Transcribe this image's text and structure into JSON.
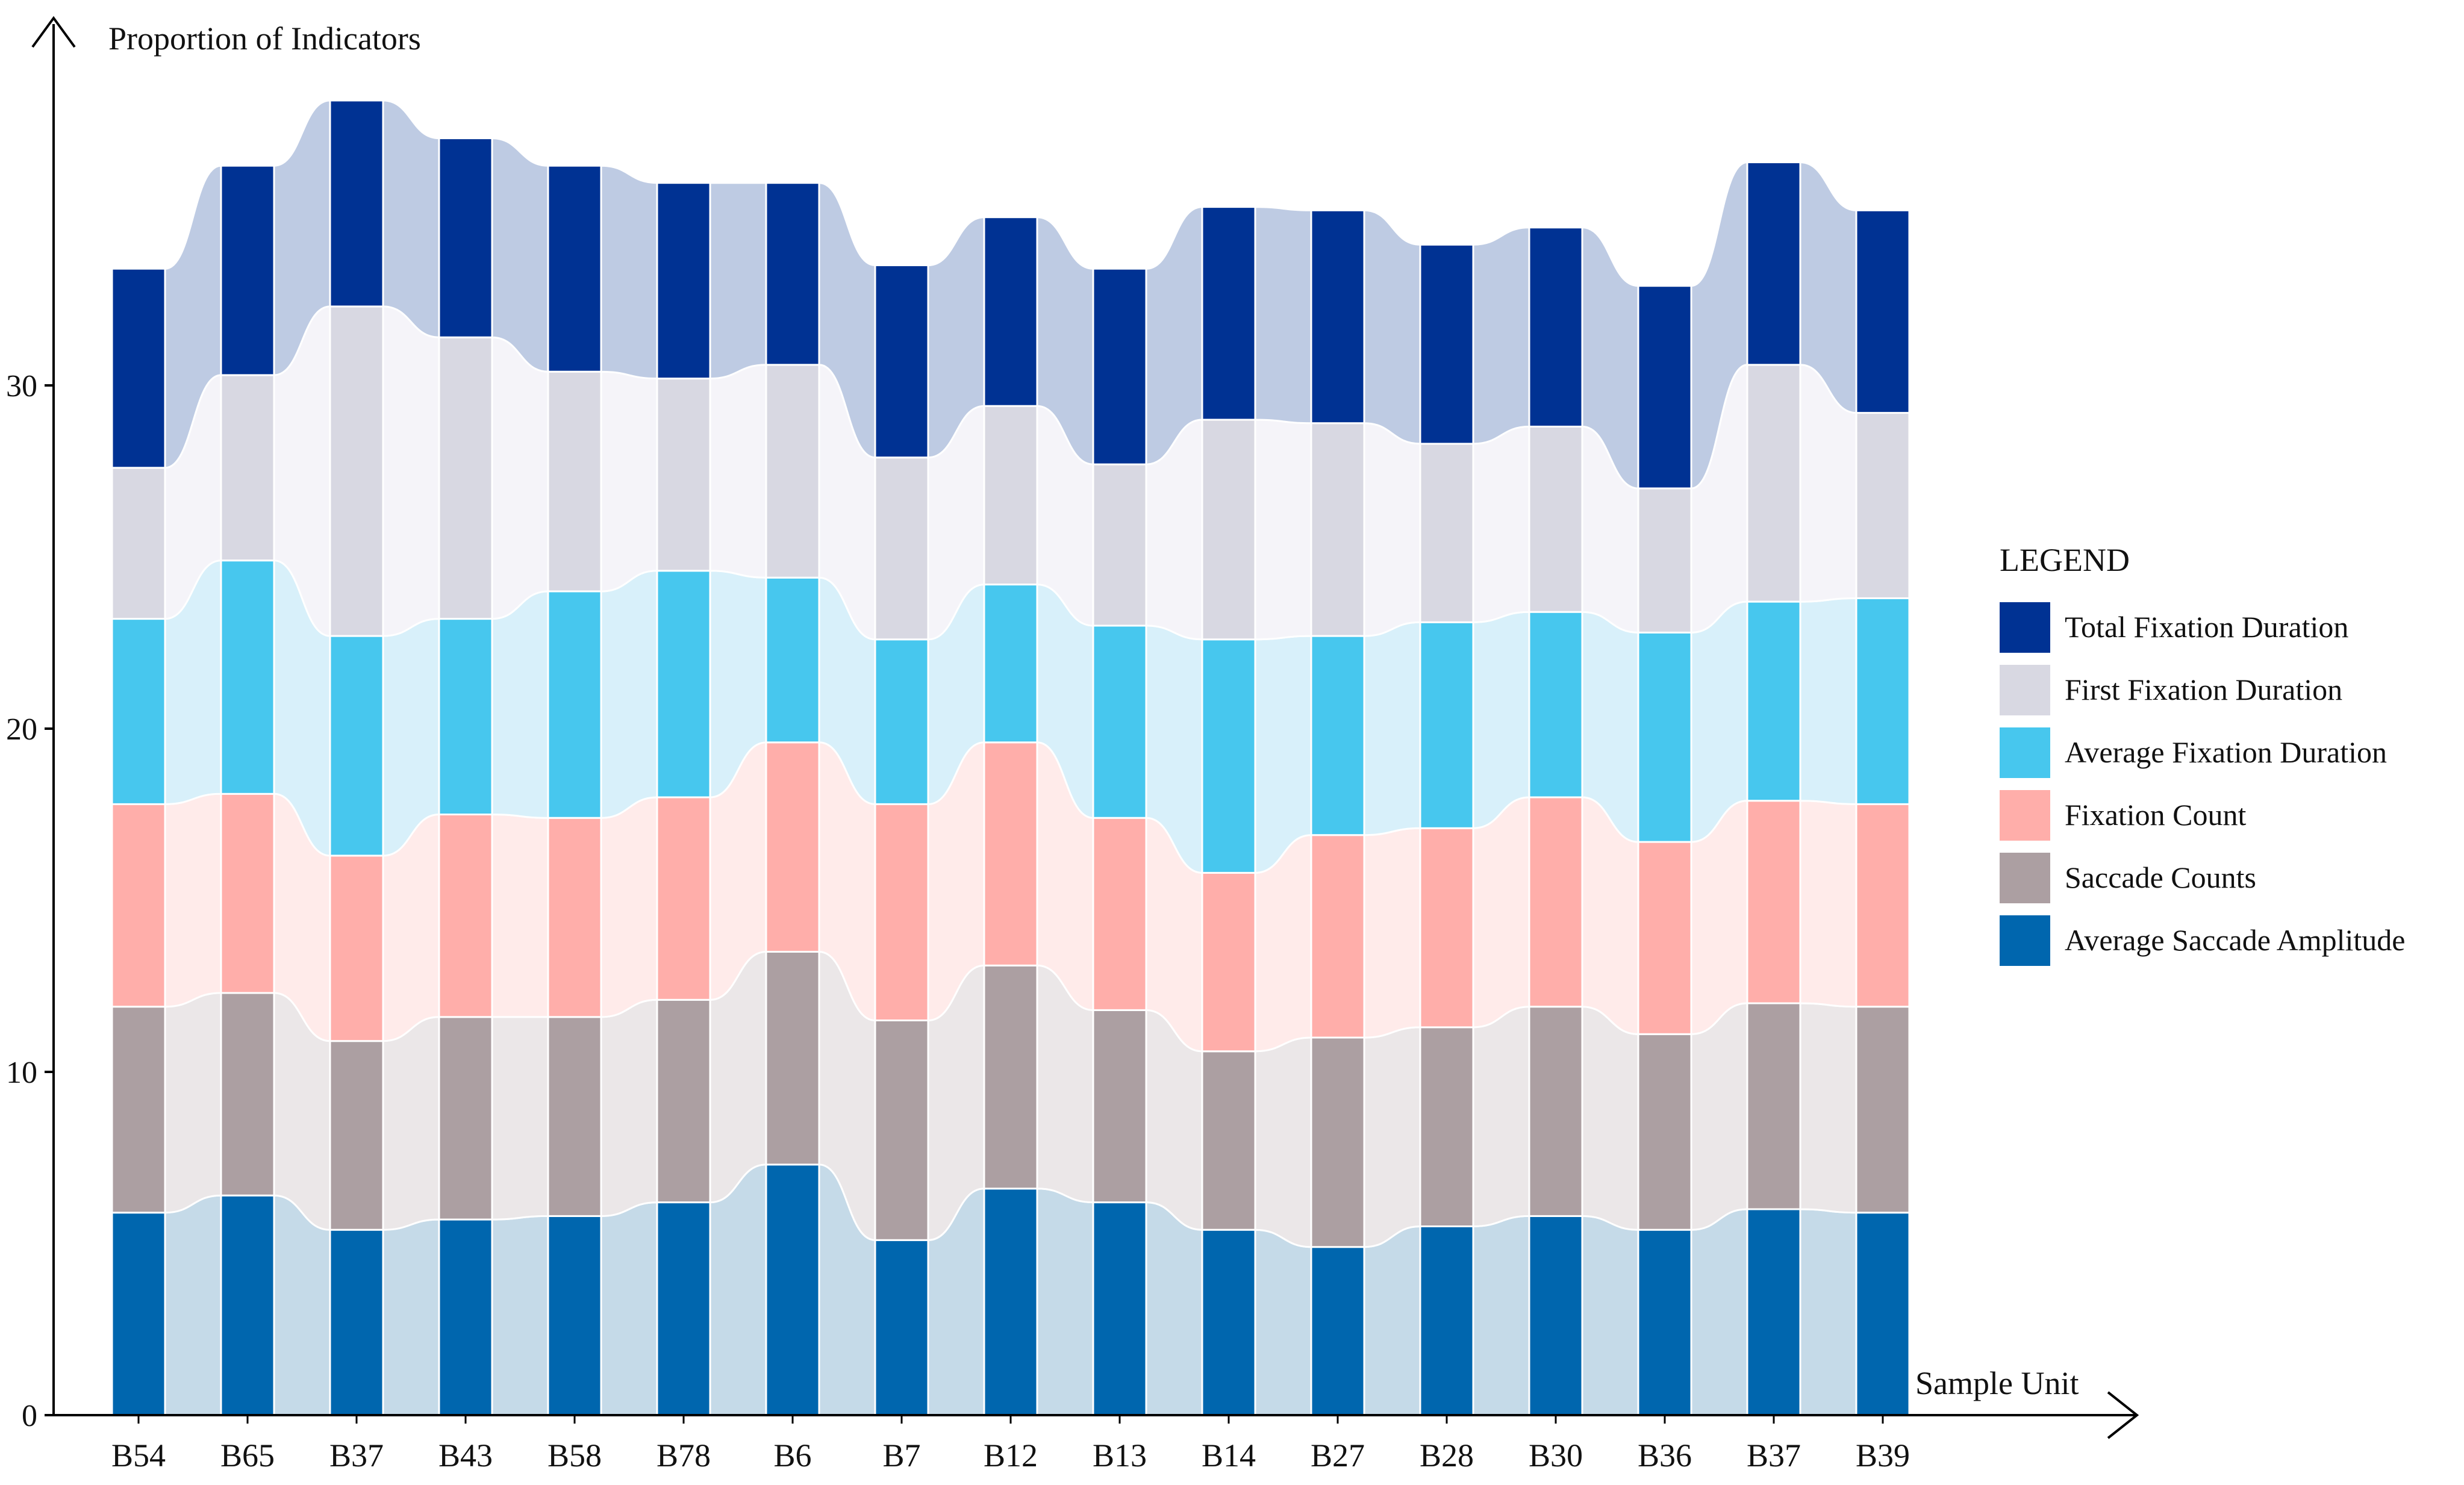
{
  "chart_data": {
    "type": "bar",
    "stacked": true,
    "style": "stacked bars joined by smooth translucent ribbons",
    "ylabel": "Proportion of Indicators",
    "xlabel": "Sample Unit",
    "ylim": [
      0,
      39
    ],
    "yticks": [
      0,
      10,
      20,
      30
    ],
    "categories": [
      "B54",
      "B65",
      "B37",
      "B43",
      "B58",
      "B78",
      "B6",
      "B7",
      "B12",
      "B13",
      "B14",
      "B27",
      "B28",
      "B30",
      "B36",
      "B37",
      "B39"
    ],
    "series": [
      {
        "name": "Average Saccade Amplitude",
        "color": "#0066AE",
        "ribbon": "#C5DAE8",
        "values": [
          5.9,
          6.4,
          5.4,
          5.7,
          5.8,
          6.2,
          7.3,
          5.1,
          6.6,
          6.2,
          5.4,
          4.9,
          5.5,
          5.8,
          5.4,
          6.0,
          5.9
        ]
      },
      {
        "name": "Saccade Counts",
        "color": "#AC9FA2",
        "ribbon": "#EBE7E8",
        "values": [
          6.0,
          5.9,
          5.5,
          5.9,
          5.8,
          5.9,
          6.2,
          6.4,
          6.5,
          5.6,
          5.2,
          6.1,
          5.8,
          6.1,
          5.7,
          6.0,
          6.0
        ]
      },
      {
        "name": "Fixation Count",
        "color": "#FFAEAA",
        "ribbon": "#FFEBEA",
        "values": [
          5.9,
          5.8,
          5.4,
          5.9,
          5.8,
          5.9,
          6.1,
          6.3,
          6.5,
          5.6,
          5.2,
          5.9,
          5.8,
          6.1,
          5.6,
          5.9,
          5.9
        ]
      },
      {
        "name": "Average Fixation Duration",
        "color": "#47C7EE",
        "ribbon": "#D8F0FA",
        "values": [
          5.4,
          6.8,
          6.4,
          5.7,
          6.6,
          6.6,
          4.8,
          4.8,
          4.6,
          5.6,
          6.8,
          5.8,
          6.0,
          5.4,
          6.1,
          5.8,
          6.0
        ]
      },
      {
        "name": "First Fixation Duration",
        "color": "#D8D8E2",
        "ribbon": "#F5F4F9",
        "values": [
          4.4,
          5.4,
          9.6,
          8.2,
          6.4,
          5.6,
          6.2,
          5.3,
          5.2,
          4.7,
          6.4,
          6.2,
          5.2,
          5.4,
          4.2,
          6.9,
          5.4
        ]
      },
      {
        "name": "Total Fixation Duration",
        "color": "#003293",
        "ribbon": "#BECBE3",
        "values": [
          5.8,
          6.1,
          6.0,
          5.8,
          6.0,
          5.7,
          5.3,
          5.6,
          5.5,
          5.7,
          6.2,
          6.2,
          5.8,
          5.8,
          5.9,
          5.9,
          5.9
        ]
      }
    ],
    "legend": {
      "title": "LEGEND",
      "position": "right",
      "items": [
        "Total Fixation Duration",
        "First Fixation Duration",
        "Average Fixation Duration",
        "Fixation Count",
        "Saccade Counts",
        "Average Saccade Amplitude"
      ]
    }
  }
}
